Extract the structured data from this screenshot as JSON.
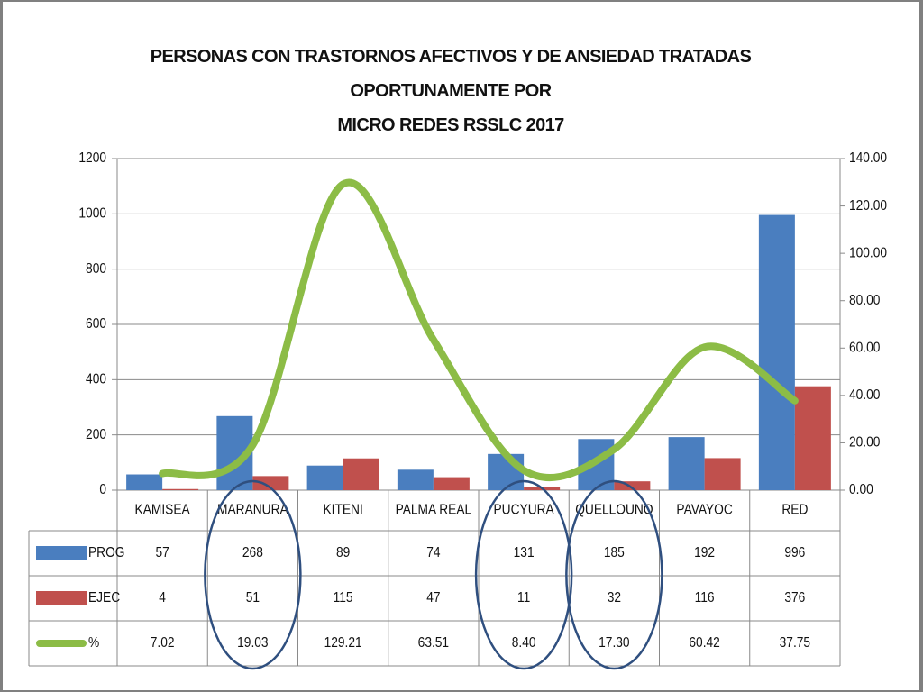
{
  "chart_data": {
    "type": "bar",
    "title_line1": "PERSONAS CON  TRASTORNOS AFECTIVOS Y DE ANSIEDAD TRATADAS OPORTUNAMENTE POR",
    "title_line2": "MICRO REDES RSSLC 2017",
    "categories": [
      "KAMISEA",
      "MARANURA",
      "KITENI",
      "PALMA REAL",
      "PUCYURA",
      "QUELLOUNO",
      "PAVAYOC",
      "RED"
    ],
    "series": [
      {
        "name": "PROG",
        "kind": "bar",
        "axis": "left",
        "color": "#4a7ebf",
        "values": [
          57,
          268,
          89,
          74,
          131,
          185,
          192,
          996
        ]
      },
      {
        "name": "EJEC",
        "kind": "bar",
        "axis": "left",
        "color": "#c0504d",
        "values": [
          4,
          51,
          115,
          47,
          11,
          32,
          116,
          376
        ]
      },
      {
        "name": "%",
        "kind": "line",
        "axis": "right",
        "color": "#8cbc46",
        "values": [
          7.02,
          19.03,
          129.21,
          63.51,
          8.4,
          17.3,
          60.42,
          37.75
        ]
      }
    ],
    "table_values": {
      "PROG": [
        "57",
        "268",
        "89",
        "74",
        "131",
        "185",
        "192",
        "996"
      ],
      "EJEC": [
        "4",
        "51",
        "115",
        "47",
        "11",
        "32",
        "116",
        "376"
      ],
      "%": [
        "7.02",
        "19.03",
        "129.21",
        "63.51",
        "8.40",
        "17.30",
        "60.42",
        "37.75"
      ]
    },
    "y_left": {
      "min": 0,
      "max": 1200,
      "ticks": [
        "0",
        "200",
        "400",
        "600",
        "800",
        "1000",
        "1200"
      ]
    },
    "y_right": {
      "min": 0,
      "max": 140,
      "ticks": [
        "0.00",
        "20.00",
        "40.00",
        "60.00",
        "80.00",
        "100.00",
        "120.00",
        "140.00"
      ]
    },
    "grid": true,
    "legend": "data-table",
    "highlighted_categories": [
      "MARANURA",
      "PUCYURA",
      "QUELLOUNO"
    ],
    "highlight_color": "#2f4f7f"
  }
}
